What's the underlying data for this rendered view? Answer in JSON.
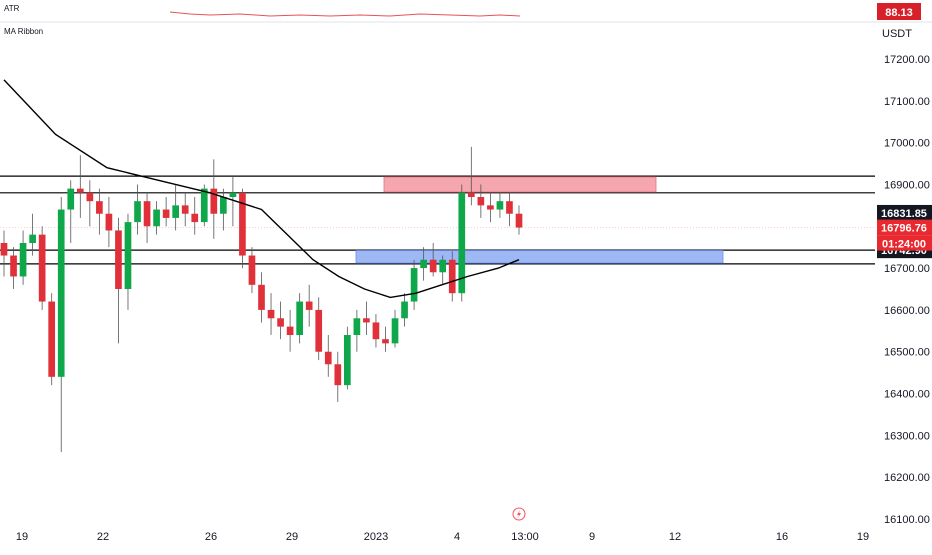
{
  "indicators": {
    "atr_label": "ATR",
    "atr_value": "88.13",
    "ma_label": "MA Ribbon"
  },
  "price_axis": {
    "currency": "USDT",
    "ticks": [
      "17200.00",
      "17100.00",
      "17000.00",
      "16900.00",
      "16800.00",
      "16700.00",
      "16600.00",
      "16500.00",
      "16400.00",
      "16300.00",
      "16200.00",
      "16100.00"
    ]
  },
  "time_axis": {
    "ticks": [
      "19",
      "22",
      "26",
      "29",
      "2023",
      "4",
      "13:00",
      "9",
      "12",
      "16",
      "19"
    ]
  },
  "price_tags": {
    "top_value": "16831.85",
    "last_price": "16796.76",
    "countdown": "01:24:00",
    "bottom_value": "16742.90"
  },
  "colors": {
    "up": "#26a69a",
    "up_alt": "#0ea84b",
    "down": "#e0313a",
    "resistance_zone": "#f5a6ae",
    "support_zone": "#9db8f5",
    "atr_tag": "#d8202b",
    "dark_tag": "#131722",
    "last_tag": "#e8292f"
  },
  "chart_data": {
    "type": "candlestick",
    "symbol_quote": "USDT",
    "ylim": [
      16100,
      17250
    ],
    "horizontal_levels": [
      16920,
      16880,
      16742.9,
      16710
    ],
    "zones": [
      {
        "name": "resistance",
        "low": 16882,
        "high": 16918,
        "color": "#f5a6ae"
      },
      {
        "name": "support",
        "low": 16712,
        "high": 16742,
        "color": "#9db8f5"
      }
    ],
    "last_price": 16796.76,
    "candles": [
      [
        16760,
        16790,
        16680,
        16730
      ],
      [
        16730,
        16750,
        16650,
        16680
      ],
      [
        16680,
        16790,
        16660,
        16760
      ],
      [
        16760,
        16830,
        16730,
        16780
      ],
      [
        16780,
        16800,
        16600,
        16620
      ],
      [
        16620,
        16640,
        16420,
        16440
      ],
      [
        16440,
        16870,
        16260,
        16840
      ],
      [
        16840,
        16910,
        16760,
        16890
      ],
      [
        16890,
        16970,
        16820,
        16880
      ],
      [
        16880,
        16910,
        16800,
        16860
      ],
      [
        16860,
        16890,
        16780,
        16830
      ],
      [
        16830,
        16870,
        16750,
        16790
      ],
      [
        16790,
        16820,
        16520,
        16650
      ],
      [
        16650,
        16830,
        16600,
        16810
      ],
      [
        16810,
        16900,
        16780,
        16860
      ],
      [
        16860,
        16880,
        16760,
        16800
      ],
      [
        16800,
        16860,
        16780,
        16840
      ],
      [
        16840,
        16870,
        16800,
        16820
      ],
      [
        16820,
        16900,
        16790,
        16850
      ],
      [
        16850,
        16880,
        16800,
        16830
      ],
      [
        16830,
        16870,
        16780,
        16810
      ],
      [
        16810,
        16900,
        16800,
        16890
      ],
      [
        16890,
        16960,
        16770,
        16830
      ],
      [
        16830,
        16890,
        16790,
        16870
      ],
      [
        16870,
        16920,
        16800,
        16880
      ],
      [
        16880,
        16890,
        16700,
        16730
      ],
      [
        16730,
        16750,
        16640,
        16660
      ],
      [
        16660,
        16690,
        16570,
        16600
      ],
      [
        16600,
        16640,
        16540,
        16580
      ],
      [
        16580,
        16620,
        16530,
        16560
      ],
      [
        16560,
        16600,
        16500,
        16540
      ],
      [
        16540,
        16640,
        16520,
        16620
      ],
      [
        16620,
        16660,
        16560,
        16600
      ],
      [
        16600,
        16630,
        16480,
        16500
      ],
      [
        16500,
        16540,
        16440,
        16470
      ],
      [
        16470,
        16500,
        16380,
        16420
      ],
      [
        16420,
        16560,
        16410,
        16540
      ],
      [
        16540,
        16600,
        16500,
        16580
      ],
      [
        16580,
        16620,
        16540,
        16570
      ],
      [
        16570,
        16590,
        16510,
        16530
      ],
      [
        16530,
        16560,
        16500,
        16520
      ],
      [
        16520,
        16600,
        16510,
        16580
      ],
      [
        16580,
        16640,
        16560,
        16620
      ],
      [
        16620,
        16720,
        16600,
        16700
      ],
      [
        16700,
        16750,
        16670,
        16720
      ],
      [
        16720,
        16760,
        16680,
        16690
      ],
      [
        16690,
        16730,
        16660,
        16720
      ],
      [
        16720,
        16740,
        16620,
        16640
      ],
      [
        16640,
        16900,
        16620,
        16880
      ],
      [
        16880,
        16990,
        16850,
        16870
      ],
      [
        16870,
        16900,
        16820,
        16850
      ],
      [
        16850,
        16880,
        16810,
        16840
      ],
      [
        16840,
        16880,
        16820,
        16860
      ],
      [
        16860,
        16880,
        16800,
        16830
      ],
      [
        16830,
        16850,
        16780,
        16797
      ]
    ],
    "ma_line": [
      [
        0,
        17150
      ],
      [
        10,
        17020
      ],
      [
        20,
        16940
      ],
      [
        30,
        16910
      ],
      [
        40,
        16880
      ],
      [
        50,
        16840
      ],
      [
        55,
        16780
      ],
      [
        60,
        16720
      ],
      [
        65,
        16680
      ],
      [
        70,
        16650
      ],
      [
        75,
        16630
      ],
      [
        80,
        16640
      ],
      [
        85,
        16660
      ],
      [
        90,
        16680
      ],
      [
        96,
        16700
      ],
      [
        100,
        16720
      ]
    ]
  }
}
